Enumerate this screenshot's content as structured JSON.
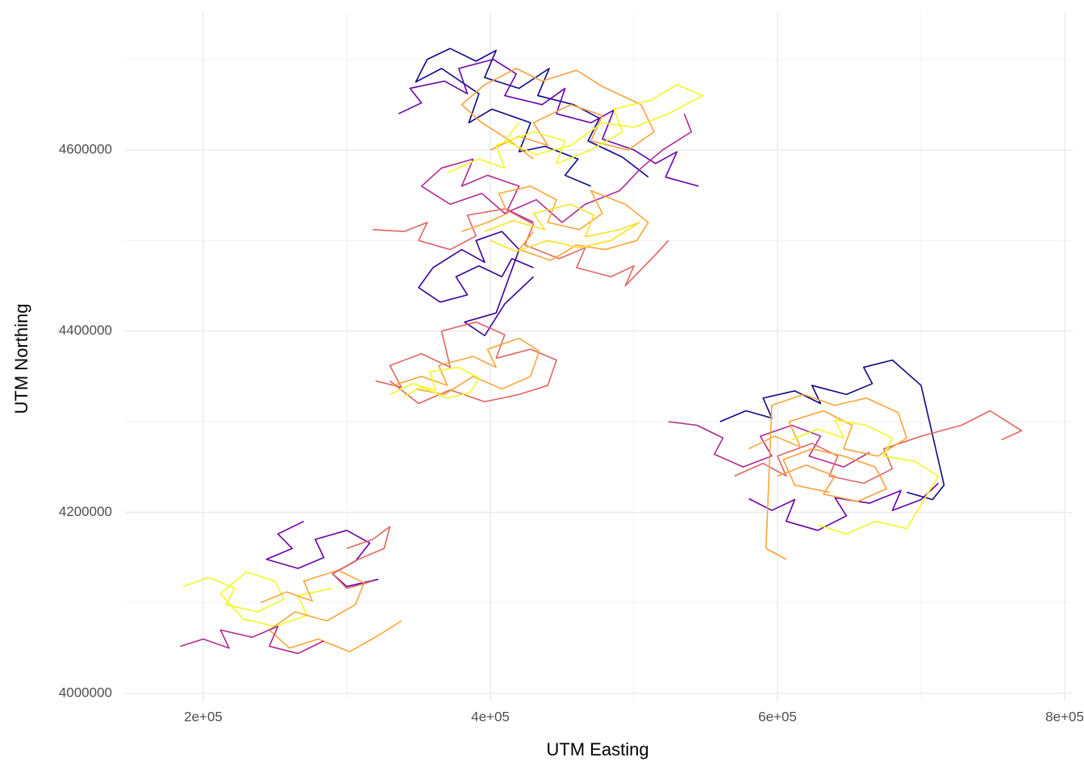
{
  "chart_data": {
    "type": "line",
    "x_label": "UTM Easting",
    "y_label": "UTM Northing",
    "xlim": [
      145500,
      805600
    ],
    "ylim": [
      3991100,
      4752200
    ],
    "xticks": [
      {
        "value": 200000,
        "label": "2e+05"
      },
      {
        "value": 400000,
        "label": "4e+05"
      },
      {
        "value": 600000,
        "label": "6e+05"
      },
      {
        "value": 800000,
        "label": "8e+05"
      }
    ],
    "yticks": [
      4000000,
      4200000,
      4400000,
      4600000
    ],
    "x_minor_grid": [
      300000,
      500000,
      700000
    ],
    "y_minor_grid": [
      4100000,
      4300000,
      4500000,
      4700000
    ],
    "grid": true,
    "series": [
      {
        "color": "#0d0887",
        "x": [
          470000,
          452000,
          461000,
          438000,
          420000,
          428000,
          401000,
          385000,
          392000,
          366000,
          348000,
          356000,
          372000,
          390000,
          404000,
          396000,
          420000,
          441000,
          433000,
          458000,
          476000,
          468000,
          492000,
          510000
        ],
        "y": [
          4560000,
          4572000,
          4590000,
          4604000,
          4598000,
          4630000,
          4645000,
          4630000,
          4662000,
          4690000,
          4675000,
          4700000,
          4712000,
          4698000,
          4710000,
          4680000,
          4668000,
          4690000,
          4660000,
          4650000,
          4635000,
          4610000,
          4592000,
          4570000
        ]
      },
      {
        "color": "#6a00a8",
        "x": [
          336000,
          352000,
          344000,
          368000,
          384000,
          378000,
          402000,
          418000,
          410000,
          436000,
          452000,
          446000,
          470000,
          486000,
          478000,
          500000,
          515000,
          530000,
          522000,
          545000
        ],
        "y": [
          4640000,
          4652000,
          4668000,
          4676000,
          4662000,
          4690000,
          4700000,
          4684000,
          4660000,
          4650000,
          4668000,
          4640000,
          4630000,
          4644000,
          4612000,
          4600000,
          4585000,
          4598000,
          4570000,
          4560000
        ]
      },
      {
        "color": "#b12a90",
        "x": [
          430000,
          412000,
          420000,
          398000,
          380000,
          388000,
          366000,
          352000,
          372000,
          394000,
          410000,
          432000,
          450000,
          466000,
          490000,
          505000,
          520000,
          540000,
          535000
        ],
        "y": [
          4520000,
          4534000,
          4560000,
          4572000,
          4560000,
          4590000,
          4580000,
          4560000,
          4540000,
          4552000,
          4530000,
          4545000,
          4520000,
          4540000,
          4555000,
          4580000,
          4600000,
          4620000,
          4640000
        ]
      },
      {
        "color": "#3a049a",
        "x": [
          430000,
          415000,
          408000,
          392000,
          376000,
          384000,
          365000,
          350000,
          360000,
          380000,
          396000,
          390000,
          408000,
          420000,
          404000,
          382000,
          396000,
          410000,
          430000
        ],
        "y": [
          4470000,
          4480000,
          4460000,
          4472000,
          4460000,
          4440000,
          4432000,
          4448000,
          4470000,
          4490000,
          4476000,
          4500000,
          4510000,
          4490000,
          4420000,
          4410000,
          4395000,
          4430000,
          4460000
        ]
      },
      {
        "color": "#e16462",
        "x": [
          318000,
          340000,
          356000,
          350000,
          372000,
          390000,
          384000,
          410000,
          430000,
          424000,
          448000,
          466000,
          460000,
          484000,
          500000,
          494000,
          516000,
          524000
        ],
        "y": [
          4512000,
          4510000,
          4520000,
          4500000,
          4490000,
          4505000,
          4528000,
          4535000,
          4518000,
          4495000,
          4480000,
          4492000,
          4470000,
          4460000,
          4472000,
          4450000,
          4486000,
          4500000
        ]
      },
      {
        "color": "#fca636",
        "x": [
          380000,
          398000,
          412000,
          406000,
          428000,
          446000,
          440000,
          462000,
          478000,
          470000,
          494000,
          510000,
          502000,
          480000,
          460000,
          442000,
          420000,
          430000
        ],
        "y": [
          4510000,
          4520000,
          4530000,
          4552000,
          4560000,
          4545000,
          4520000,
          4512000,
          4530000,
          4555000,
          4540000,
          4520000,
          4500000,
          4490000,
          4495000,
          4478000,
          4490000,
          4510000
        ]
      },
      {
        "color": "#fb9f3a",
        "x": [
          400000,
          420000,
          440000,
          430000,
          456000,
          478000,
          470000,
          496000,
          514000,
          505000,
          478000,
          460000,
          436000,
          418000,
          396000,
          380000,
          394000,
          412000,
          430000
        ],
        "y": [
          4600000,
          4615000,
          4605000,
          4630000,
          4650000,
          4638000,
          4610000,
          4600000,
          4620000,
          4650000,
          4670000,
          4688000,
          4676000,
          4690000,
          4672000,
          4650000,
          4630000,
          4612000,
          4590000
        ]
      },
      {
        "color": "#f0f921",
        "x": [
          370000,
          392000,
          410000,
          404000,
          430000,
          452000,
          446000,
          470000,
          492000,
          486000,
          512000,
          530000,
          548000,
          524000,
          500000,
          478000,
          456000,
          432000,
          410000,
          420000
        ],
        "y": [
          4575000,
          4590000,
          4580000,
          4605000,
          4620000,
          4610000,
          4585000,
          4600000,
          4620000,
          4645000,
          4655000,
          4672000,
          4660000,
          4640000,
          4625000,
          4630000,
          4605000,
          4595000,
          4610000,
          4630000
        ]
      },
      {
        "color": "#f7e225",
        "x": [
          396000,
          416000,
          438000,
          430000,
          456000,
          472000,
          466000,
          490000,
          504000,
          484000,
          462000,
          440000,
          418000,
          400000
        ],
        "y": [
          4510000,
          4522000,
          4512000,
          4530000,
          4540000,
          4528000,
          4504000,
          4512000,
          4520000,
          4500000,
          4492000,
          4500000,
          4488000,
          4500000
        ]
      },
      {
        "color": "#e16462",
        "x": [
          320000,
          338000,
          330000,
          352000,
          372000,
          366000,
          390000,
          410000,
          404000,
          428000,
          446000,
          440000,
          420000,
          396000,
          372000,
          350000,
          330000
        ],
        "y": [
          4345000,
          4338000,
          4362000,
          4375000,
          4360000,
          4400000,
          4410000,
          4396000,
          4370000,
          4380000,
          4368000,
          4340000,
          4330000,
          4322000,
          4335000,
          4320000,
          4345000
        ]
      },
      {
        "color": "#fca636",
        "x": [
          332000,
          352000,
          370000,
          364000,
          388000,
          404000,
          398000,
          420000,
          434000,
          428000,
          408000,
          388000,
          368000,
          348000
        ],
        "y": [
          4340000,
          4350000,
          4340000,
          4362000,
          4372000,
          4360000,
          4380000,
          4392000,
          4378000,
          4350000,
          4336000,
          4350000,
          4330000,
          4336000
        ]
      },
      {
        "color": "#f0f921",
        "x": [
          330000,
          346000,
          362000,
          358000,
          378000,
          392000,
          386000,
          370000,
          352000,
          340000
        ],
        "y": [
          4330000,
          4342000,
          4334000,
          4355000,
          4360000,
          4348000,
          4332000,
          4326000,
          4338000,
          4328000
        ]
      },
      {
        "color": "#6a00a8",
        "x": [
          270000,
          252000,
          262000,
          244000,
          266000,
          284000,
          278000,
          300000,
          316000,
          306000,
          290000,
          300000,
          322000
        ],
        "y": [
          4190000,
          4176000,
          4160000,
          4148000,
          4138000,
          4150000,
          4170000,
          4180000,
          4166000,
          4146000,
          4132000,
          4118000,
          4126000
        ]
      },
      {
        "color": "#f0f921",
        "x": [
          186000,
          204000,
          222000,
          216000,
          238000,
          256000,
          250000,
          230000,
          212000,
          228000,
          250000,
          272000,
          266000,
          290000
        ],
        "y": [
          4118000,
          4128000,
          4116000,
          4098000,
          4090000,
          4104000,
          4124000,
          4134000,
          4110000,
          4082000,
          4074000,
          4086000,
          4108000,
          4116000
        ]
      },
      {
        "color": "#fca636",
        "x": [
          240000,
          258000,
          276000,
          270000,
          294000,
          312000,
          306000,
          286000,
          264000,
          246000,
          260000,
          280000,
          302000,
          322000,
          338000
        ],
        "y": [
          4100000,
          4112000,
          4102000,
          4124000,
          4136000,
          4122000,
          4098000,
          4080000,
          4090000,
          4070000,
          4050000,
          4060000,
          4046000,
          4064000,
          4080000
        ]
      },
      {
        "color": "#b12a90",
        "x": [
          184000,
          200000,
          218000,
          212000,
          234000,
          252000,
          246000,
          266000,
          284000
        ],
        "y": [
          4052000,
          4060000,
          4050000,
          4070000,
          4062000,
          4074000,
          4052000,
          4044000,
          4058000
        ]
      },
      {
        "color": "#e16462",
        "x": [
          300000,
          318000,
          330000,
          326000,
          308000,
          290000,
          300000,
          318000
        ],
        "y": [
          4160000,
          4170000,
          4184000,
          4160000,
          4148000,
          4132000,
          4116000,
          4124000
        ]
      },
      {
        "color": "#0d0887",
        "x": [
          560000,
          578000,
          596000,
          590000,
          612000,
          630000,
          624000,
          648000,
          666000,
          660000,
          680000,
          700000,
          716000,
          708000,
          690000
        ],
        "y": [
          4300000,
          4312000,
          4304000,
          4326000,
          4334000,
          4320000,
          4340000,
          4330000,
          4342000,
          4360000,
          4368000,
          4340000,
          4230000,
          4214000,
          4222000
        ]
      },
      {
        "color": "#6a00a8",
        "x": [
          580000,
          596000,
          612000,
          606000,
          628000,
          648000,
          640000,
          664000,
          686000,
          680000,
          700000,
          712000
        ],
        "y": [
          4215000,
          4202000,
          4214000,
          4190000,
          4180000,
          4196000,
          4216000,
          4210000,
          4224000,
          4202000,
          4214000,
          4232000
        ]
      },
      {
        "color": "#b12a90",
        "x": [
          524000,
          544000,
          562000,
          556000,
          576000,
          596000,
          588000,
          610000,
          630000,
          622000,
          646000,
          664000
        ],
        "y": [
          4300000,
          4296000,
          4282000,
          4264000,
          4250000,
          4262000,
          4284000,
          4296000,
          4284000,
          4262000,
          4250000,
          4266000
        ]
      },
      {
        "color": "#e16462",
        "x": [
          570000,
          590000,
          606000,
          600000,
          624000,
          642000,
          636000,
          660000,
          680000,
          674000,
          700000,
          728000,
          748000,
          770000,
          756000
        ],
        "y": [
          4240000,
          4254000,
          4240000,
          4262000,
          4276000,
          4262000,
          4240000,
          4232000,
          4248000,
          4270000,
          4284000,
          4296000,
          4312000,
          4290000,
          4280000
        ]
      },
      {
        "color": "#fca636",
        "x": [
          580000,
          598000,
          616000,
          608000,
          632000,
          652000,
          646000,
          670000,
          690000,
          684000,
          662000,
          640000,
          618000,
          596000,
          592000,
          606000
        ],
        "y": [
          4270000,
          4284000,
          4272000,
          4300000,
          4312000,
          4296000,
          4270000,
          4262000,
          4282000,
          4310000,
          4326000,
          4318000,
          4330000,
          4318000,
          4160000,
          4148000
        ]
      },
      {
        "color": "#fb9f3a",
        "x": [
          600000,
          620000,
          640000,
          632000,
          656000,
          676000,
          668000,
          646000,
          624000,
          604000,
          612000,
          636000
        ],
        "y": [
          4240000,
          4252000,
          4240000,
          4220000,
          4212000,
          4226000,
          4250000,
          4262000,
          4270000,
          4258000,
          4230000,
          4222000
        ]
      },
      {
        "color": "#f0f921",
        "x": [
          610000,
          628000,
          646000,
          640000,
          662000,
          680000,
          674000,
          696000,
          712000,
          690000,
          668000,
          648000,
          628000
        ],
        "y": [
          4280000,
          4292000,
          4282000,
          4302000,
          4296000,
          4282000,
          4262000,
          4256000,
          4240000,
          4182000,
          4190000,
          4176000,
          4186000
        ]
      }
    ]
  }
}
